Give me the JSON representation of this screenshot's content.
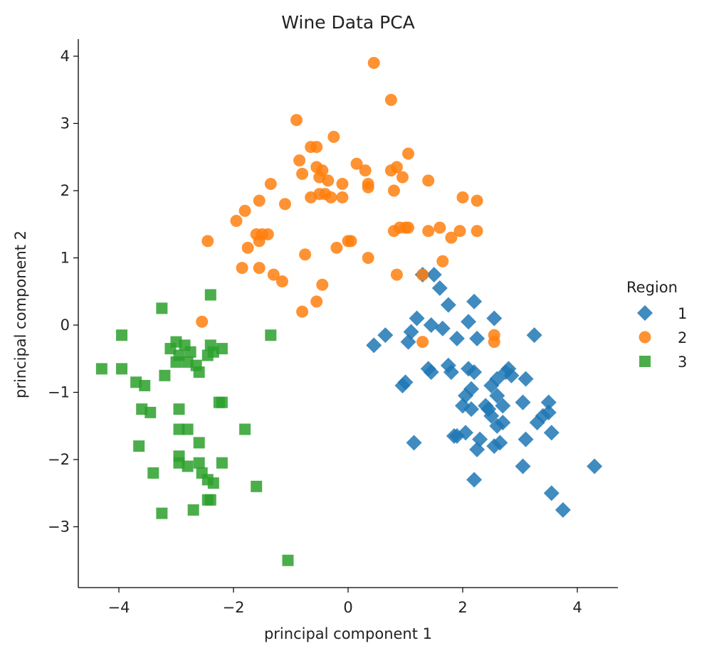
{
  "chart_data": {
    "type": "scatter",
    "title": "Wine Data PCA",
    "xlabel": "principal component 1",
    "ylabel": "principal component 2",
    "xlim": [
      -4.7,
      4.7
    ],
    "ylim": [
      -3.9,
      4.3
    ],
    "xticks": [
      -4,
      -2,
      0,
      2,
      4
    ],
    "yticks": [
      -3,
      -2,
      -1,
      0,
      1,
      2,
      3,
      4
    ],
    "xtick_labels": [
      "−4",
      "−2",
      "0",
      "2",
      "4"
    ],
    "ytick_labels": [
      "−3",
      "−2",
      "−1",
      "0",
      "1",
      "2",
      "3",
      "4"
    ],
    "grid": false,
    "legend": {
      "title": "Region",
      "placement": "right"
    },
    "series": [
      {
        "name": "1",
        "marker": "diamond",
        "color": "#1f77b4",
        "points": [
          [
            0.45,
            -0.3
          ],
          [
            0.65,
            -0.15
          ],
          [
            0.95,
            -0.9
          ],
          [
            1.0,
            -0.85
          ],
          [
            1.05,
            -0.25
          ],
          [
            1.1,
            -0.1
          ],
          [
            1.15,
            -1.75
          ],
          [
            1.2,
            0.1
          ],
          [
            1.4,
            -0.65
          ],
          [
            1.45,
            -0.7
          ],
          [
            1.5,
            0.75
          ],
          [
            1.6,
            0.55
          ],
          [
            1.65,
            -0.05
          ],
          [
            1.75,
            0.3
          ],
          [
            1.75,
            -0.6
          ],
          [
            1.8,
            -0.7
          ],
          [
            1.85,
            -1.65
          ],
          [
            1.9,
            -1.65
          ],
          [
            1.9,
            -0.2
          ],
          [
            2.0,
            -1.2
          ],
          [
            2.05,
            -1.05
          ],
          [
            2.05,
            -1.6
          ],
          [
            2.1,
            0.05
          ],
          [
            2.1,
            -0.65
          ],
          [
            2.15,
            -0.95
          ],
          [
            2.15,
            -1.25
          ],
          [
            2.2,
            -2.3
          ],
          [
            2.2,
            -0.7
          ],
          [
            2.2,
            0.35
          ],
          [
            2.25,
            -1.85
          ],
          [
            2.25,
            -0.2
          ],
          [
            2.3,
            -1.7
          ],
          [
            2.4,
            -1.2
          ],
          [
            2.45,
            -1.25
          ],
          [
            2.5,
            -0.9
          ],
          [
            2.5,
            -1.35
          ],
          [
            2.55,
            0.1
          ],
          [
            2.55,
            -1.8
          ],
          [
            2.6,
            -1.05
          ],
          [
            2.6,
            -1.5
          ],
          [
            2.6,
            -0.8
          ],
          [
            2.65,
            -1.75
          ],
          [
            2.7,
            -1.2
          ],
          [
            2.7,
            -1.45
          ],
          [
            2.75,
            -0.7
          ],
          [
            2.8,
            -0.65
          ],
          [
            2.85,
            -0.75
          ],
          [
            3.05,
            -2.1
          ],
          [
            3.05,
            -1.15
          ],
          [
            3.1,
            -1.7
          ],
          [
            3.1,
            -0.8
          ],
          [
            3.25,
            -0.15
          ],
          [
            3.3,
            -1.45
          ],
          [
            3.4,
            -1.35
          ],
          [
            3.5,
            -1.15
          ],
          [
            3.5,
            -1.3
          ],
          [
            3.55,
            -1.6
          ],
          [
            3.55,
            -2.5
          ],
          [
            3.75,
            -2.75
          ],
          [
            4.3,
            -2.1
          ],
          [
            1.3,
            0.75
          ],
          [
            1.45,
            0.0
          ]
        ]
      },
      {
        "name": "2",
        "marker": "circle",
        "color": "#ff7f0e",
        "points": [
          [
            0.45,
            3.9
          ],
          [
            0.75,
            3.35
          ],
          [
            -0.9,
            3.05
          ],
          [
            -0.25,
            2.8
          ],
          [
            -0.65,
            2.65
          ],
          [
            -0.55,
            2.65
          ],
          [
            1.05,
            2.55
          ],
          [
            0.15,
            2.4
          ],
          [
            -0.85,
            2.45
          ],
          [
            -0.55,
            2.35
          ],
          [
            -0.45,
            2.3
          ],
          [
            -0.5,
            2.2
          ],
          [
            -0.35,
            2.15
          ],
          [
            -0.8,
            2.25
          ],
          [
            0.3,
            2.3
          ],
          [
            0.75,
            2.3
          ],
          [
            0.85,
            2.35
          ],
          [
            0.95,
            2.2
          ],
          [
            1.4,
            2.15
          ],
          [
            -1.35,
            2.1
          ],
          [
            -0.1,
            2.1
          ],
          [
            0.35,
            2.1
          ],
          [
            0.35,
            2.05
          ],
          [
            0.8,
            2.0
          ],
          [
            2.0,
            1.9
          ],
          [
            2.25,
            1.85
          ],
          [
            -0.4,
            1.95
          ],
          [
            -0.5,
            1.95
          ],
          [
            -0.65,
            1.9
          ],
          [
            -0.3,
            1.9
          ],
          [
            -0.1,
            1.9
          ],
          [
            -1.55,
            1.85
          ],
          [
            -1.1,
            1.8
          ],
          [
            -1.8,
            1.7
          ],
          [
            -1.95,
            1.55
          ],
          [
            -1.5,
            1.35
          ],
          [
            -1.6,
            1.35
          ],
          [
            -1.4,
            1.35
          ],
          [
            -1.55,
            1.25
          ],
          [
            -2.45,
            1.25
          ],
          [
            -1.75,
            1.15
          ],
          [
            0.05,
            1.25
          ],
          [
            0.0,
            1.25
          ],
          [
            -0.2,
            1.15
          ],
          [
            0.8,
            1.4
          ],
          [
            0.9,
            1.45
          ],
          [
            1.0,
            1.45
          ],
          [
            1.05,
            1.45
          ],
          [
            1.4,
            1.4
          ],
          [
            1.6,
            1.45
          ],
          [
            1.95,
            1.4
          ],
          [
            2.25,
            1.4
          ],
          [
            1.8,
            1.3
          ],
          [
            -0.75,
            1.05
          ],
          [
            0.35,
            1.0
          ],
          [
            1.65,
            0.95
          ],
          [
            -1.55,
            0.85
          ],
          [
            -1.85,
            0.85
          ],
          [
            -1.3,
            0.75
          ],
          [
            -1.15,
            0.65
          ],
          [
            -0.45,
            0.6
          ],
          [
            0.85,
            0.75
          ],
          [
            1.3,
            0.75
          ],
          [
            -0.55,
            0.35
          ],
          [
            -0.8,
            0.2
          ],
          [
            -2.55,
            0.05
          ],
          [
            1.3,
            -0.25
          ],
          [
            2.55,
            -0.15
          ],
          [
            2.55,
            -0.25
          ]
        ]
      },
      {
        "name": "3",
        "marker": "square",
        "color": "#2ca02c",
        "points": [
          [
            -3.25,
            0.25
          ],
          [
            -2.4,
            0.45
          ],
          [
            -3.95,
            -0.15
          ],
          [
            -1.35,
            -0.15
          ],
          [
            -3.1,
            -0.35
          ],
          [
            -3.0,
            -0.25
          ],
          [
            -2.85,
            -0.3
          ],
          [
            -2.4,
            -0.3
          ],
          [
            -2.2,
            -0.35
          ],
          [
            -2.35,
            -0.4
          ],
          [
            -2.95,
            -0.45
          ],
          [
            -2.75,
            -0.4
          ],
          [
            -2.45,
            -0.45
          ],
          [
            -3.0,
            -0.55
          ],
          [
            -2.8,
            -0.55
          ],
          [
            -2.65,
            -0.6
          ],
          [
            -2.6,
            -0.7
          ],
          [
            -3.2,
            -0.75
          ],
          [
            -4.3,
            -0.65
          ],
          [
            -3.95,
            -0.65
          ],
          [
            -3.7,
            -0.85
          ],
          [
            -3.55,
            -0.9
          ],
          [
            -3.6,
            -1.25
          ],
          [
            -3.45,
            -1.3
          ],
          [
            -2.95,
            -1.25
          ],
          [
            -2.25,
            -1.15
          ],
          [
            -2.2,
            -1.15
          ],
          [
            -2.95,
            -1.55
          ],
          [
            -2.8,
            -1.55
          ],
          [
            -1.8,
            -1.55
          ],
          [
            -3.65,
            -1.8
          ],
          [
            -2.6,
            -1.75
          ],
          [
            -2.95,
            -1.95
          ],
          [
            -2.95,
            -2.05
          ],
          [
            -2.6,
            -2.05
          ],
          [
            -2.8,
            -2.1
          ],
          [
            -2.2,
            -2.05
          ],
          [
            -3.4,
            -2.2
          ],
          [
            -2.55,
            -2.2
          ],
          [
            -2.45,
            -2.3
          ],
          [
            -2.35,
            -2.35
          ],
          [
            -1.6,
            -2.4
          ],
          [
            -2.45,
            -2.6
          ],
          [
            -2.4,
            -2.6
          ],
          [
            -3.25,
            -2.8
          ],
          [
            -2.7,
            -2.75
          ],
          [
            -1.05,
            -3.5
          ]
        ]
      }
    ]
  }
}
